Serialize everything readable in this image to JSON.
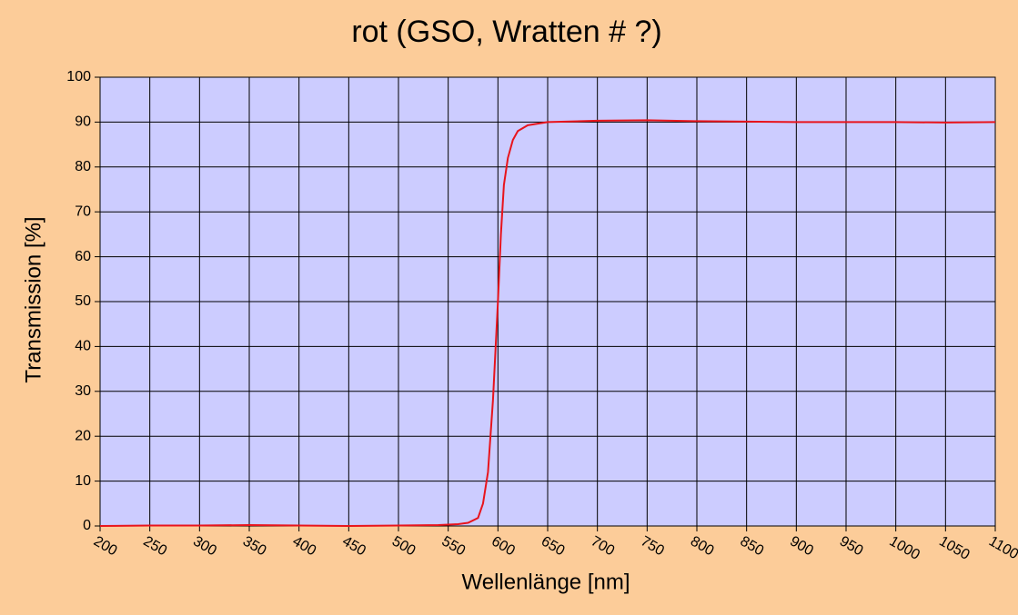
{
  "chart_data": {
    "type": "line",
    "title": "rot (GSO, Wratten # ?)",
    "x_label": "Wellenlänge [nm]",
    "y_label": "Transmission [%]",
    "x": [
      200,
      250,
      300,
      350,
      400,
      450,
      500,
      540,
      560,
      570,
      580,
      585,
      590,
      595,
      600,
      603,
      606,
      610,
      615,
      620,
      630,
      650,
      700,
      750,
      800,
      850,
      900,
      950,
      1000,
      1050,
      1100
    ],
    "series": [
      {
        "name": "rot",
        "color": "#e8141c",
        "values": [
          0,
          0.1,
          0.1,
          0.2,
          0.1,
          0,
          0.1,
          0.2,
          0.4,
          0.7,
          1.8,
          5,
          12,
          28,
          50,
          65,
          76,
          82,
          86,
          88,
          89.3,
          90,
          90.3,
          90.4,
          90.2,
          90.1,
          90,
          90,
          90,
          89.9,
          90
        ]
      }
    ],
    "xlim": [
      200,
      1100
    ],
    "xticks": [
      200,
      250,
      300,
      350,
      400,
      450,
      500,
      550,
      600,
      650,
      700,
      750,
      800,
      850,
      900,
      950,
      1000,
      1050,
      1100
    ],
    "ylim": [
      0,
      100
    ],
    "yticks": [
      0,
      10,
      20,
      30,
      40,
      50,
      60,
      70,
      80,
      90,
      100
    ],
    "grid": true
  }
}
